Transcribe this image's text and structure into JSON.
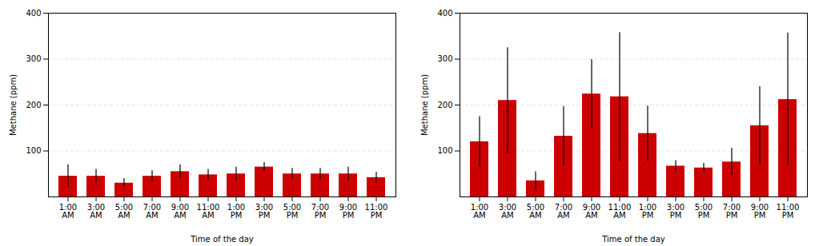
{
  "chart_data": [
    {
      "type": "bar",
      "categories": [
        "1:00\nAM",
        "3:00\nAM",
        "5:00\nAM",
        "7:00\nAM",
        "9:00\nAM",
        "11:00\nAM",
        "1:00\nPM",
        "3:00\nPM",
        "5:00\nPM",
        "7:00\nPM",
        "9:00\nPM",
        "11:00\nPM"
      ],
      "values": [
        45,
        45,
        30,
        45,
        55,
        48,
        50,
        65,
        50,
        50,
        50,
        42
      ],
      "errors": [
        25,
        15,
        10,
        12,
        15,
        12,
        15,
        10,
        12,
        12,
        15,
        12
      ],
      "color": "#cc0000",
      "xlabel": "Time of the day",
      "ylabel": "Methane (ppm)",
      "ylim": [
        0,
        400
      ],
      "yticks": [
        100,
        200,
        300,
        400
      ],
      "grid": true
    },
    {
      "type": "bar",
      "categories": [
        "1:00\nAM",
        "3:00\nAM",
        "5:00\nAM",
        "7:00\nAM",
        "9:00\nAM",
        "11:00\nAM",
        "1:00\nPM",
        "3:00\nPM",
        "5:00\nPM",
        "7:00\nPM",
        "9:00\nPM",
        "11:00\nPM"
      ],
      "values": [
        120,
        210,
        35,
        132,
        224,
        218,
        138,
        67,
        63,
        76,
        155,
        212
      ],
      "errors": [
        55,
        115,
        20,
        65,
        75,
        140,
        60,
        12,
        10,
        30,
        85,
        145
      ],
      "color": "#cc0000",
      "xlabel": "Time of the day",
      "ylabel": "Methane (ppm)",
      "ylim": [
        0,
        400
      ],
      "yticks": [
        100,
        200,
        300,
        400
      ],
      "grid": true
    }
  ]
}
